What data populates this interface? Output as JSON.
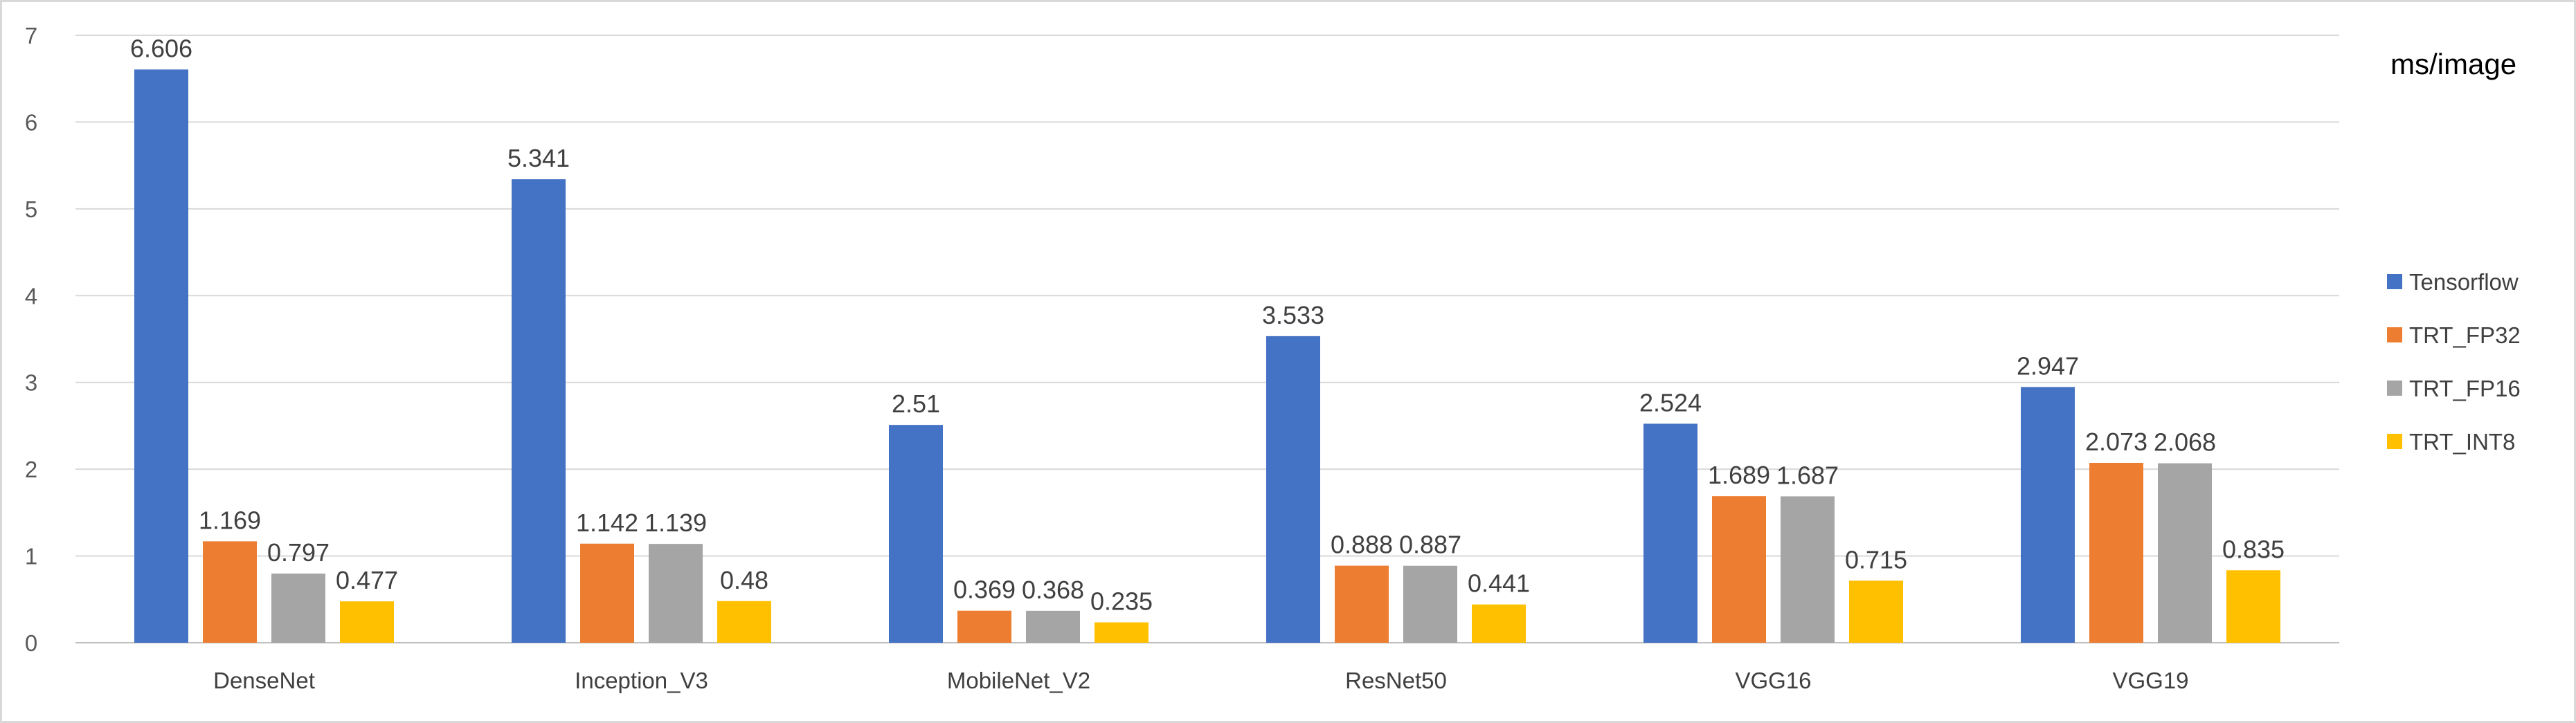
{
  "chart_data": {
    "type": "bar",
    "title": "",
    "unit_label": "ms/image",
    "xlabel": "",
    "ylabel": "",
    "ylim": [
      0,
      7
    ],
    "yticks": [
      0,
      1,
      2,
      3,
      4,
      5,
      6,
      7
    ],
    "grid": true,
    "legend_position": "right",
    "categories": [
      "DenseNet",
      "Inception_V3",
      "MobileNet_V2",
      "ResNet50",
      "VGG16",
      "VGG19"
    ],
    "series": [
      {
        "name": "Tensorflow",
        "color": "#4472C4",
        "values": [
          6.606,
          5.341,
          2.51,
          3.533,
          2.524,
          2.947
        ],
        "labels": [
          "6.606",
          "5.341",
          "2.51",
          "3.533",
          "2.524",
          "2.947"
        ]
      },
      {
        "name": "TRT_FP32",
        "color": "#ED7D31",
        "values": [
          1.169,
          1.142,
          0.369,
          0.888,
          1.689,
          2.073
        ],
        "labels": [
          "1.169",
          "1.142",
          "0.369",
          "0.888",
          "1.689",
          "2.073"
        ]
      },
      {
        "name": "TRT_FP16",
        "color": "#A5A5A5",
        "values": [
          0.797,
          1.139,
          0.368,
          0.887,
          1.687,
          2.068
        ],
        "labels": [
          "0.797",
          "1.139",
          "0.368",
          "0.887",
          "1.687",
          "2.068"
        ]
      },
      {
        "name": "TRT_INT8",
        "color": "#FFC000",
        "values": [
          0.477,
          0.48,
          0.235,
          0.441,
          0.715,
          0.835
        ],
        "labels": [
          "0.477",
          "0.48",
          "0.235",
          "0.441",
          "0.715",
          "0.835"
        ]
      }
    ]
  }
}
